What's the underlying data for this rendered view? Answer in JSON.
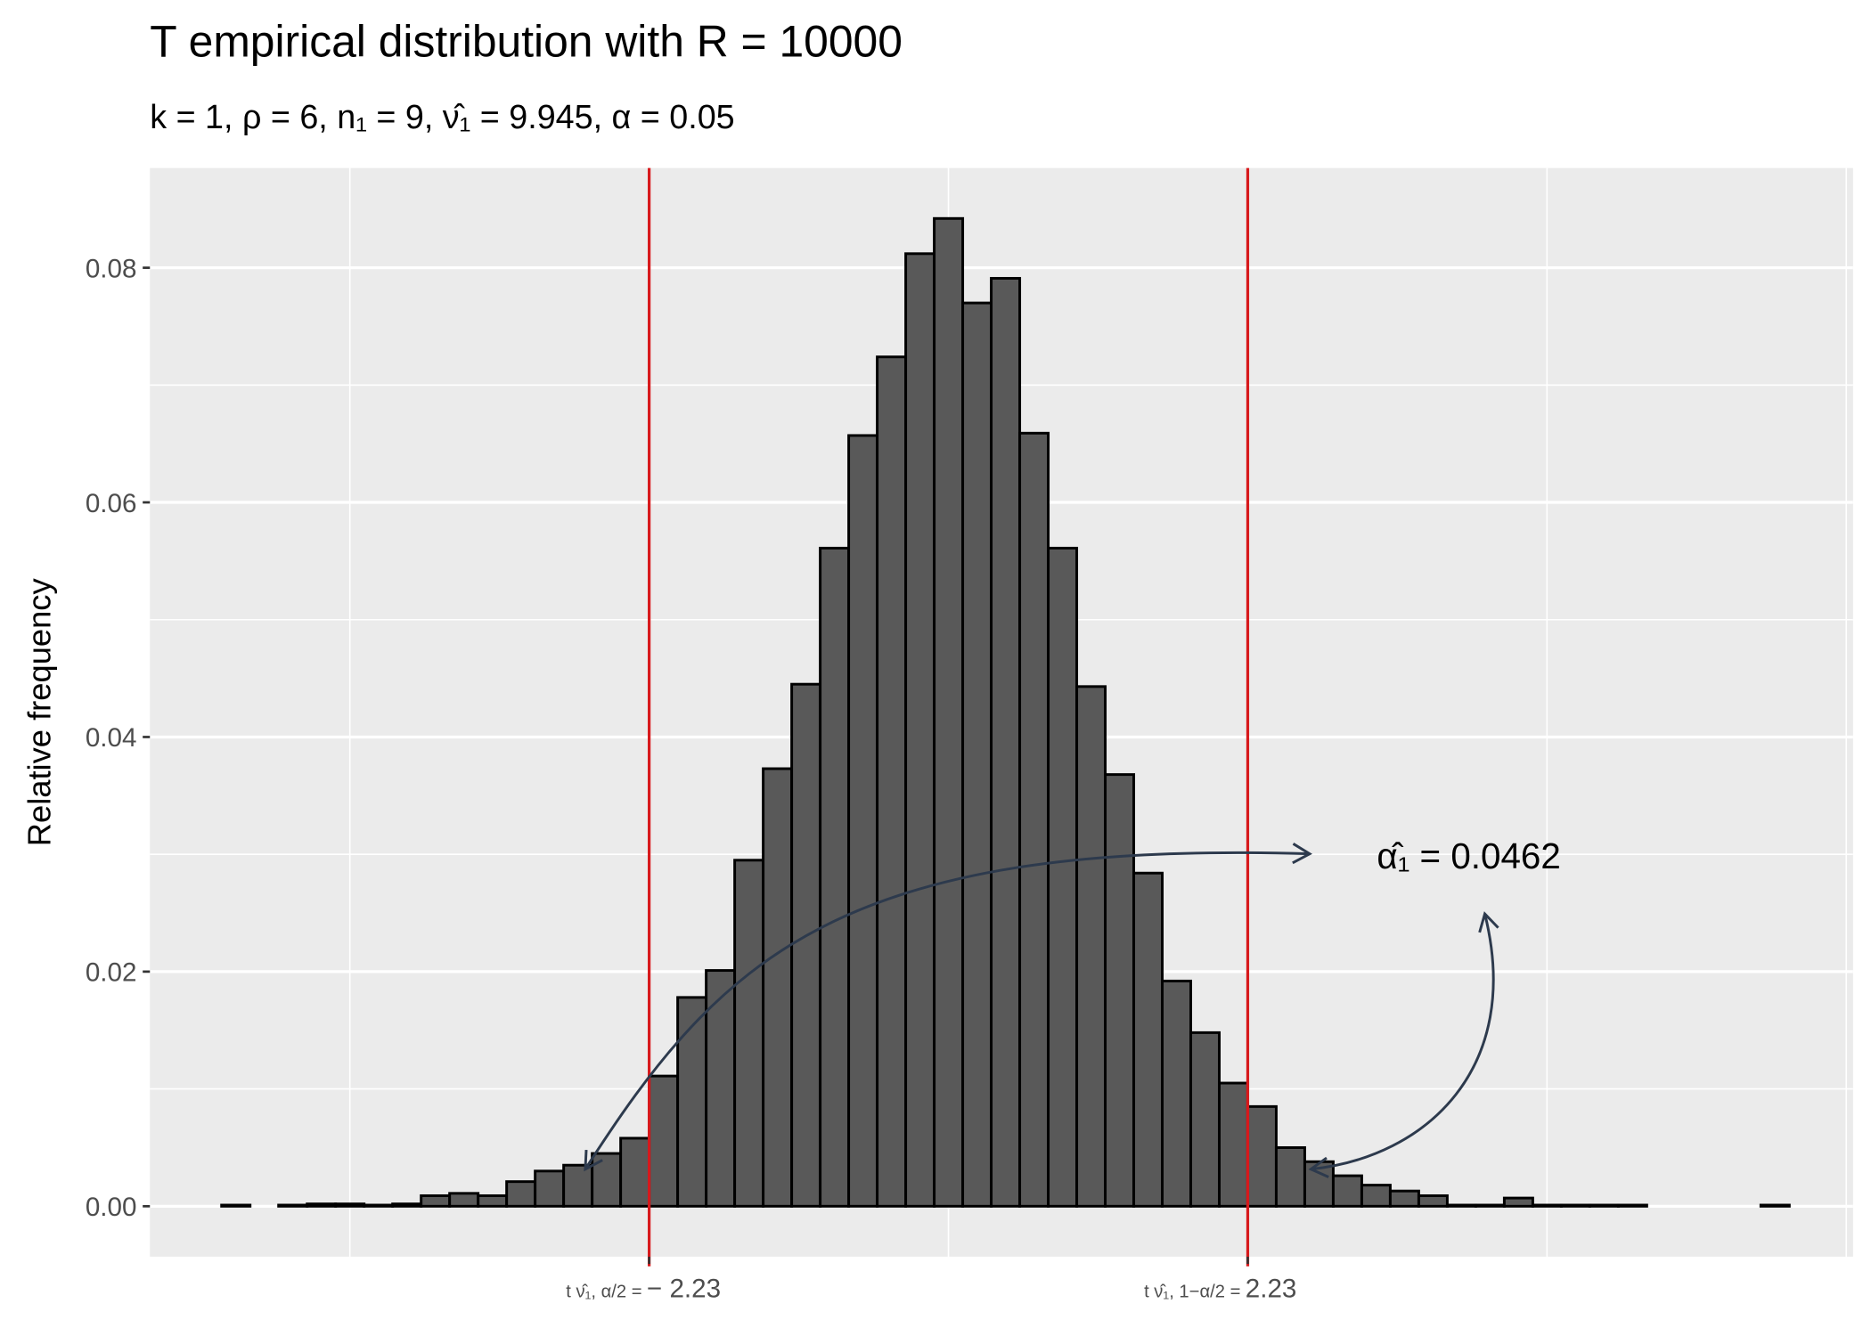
{
  "chart_data": {
    "type": "histogram",
    "title": "T empirical distribution with R = 10000",
    "subtitle": "k = 1, ρ = 6, n₁ = 9, ν̂₁ = 9.945, α = 0.05",
    "y_label": "Relative frequency",
    "annotation": "α̂₁ = 0.0462",
    "bins": [
      -5.416,
      -5.2036,
      -4.9912,
      -4.7788,
      -4.5664,
      -4.354,
      -4.1416,
      -3.9292,
      -3.7168,
      -3.5044,
      -3.292,
      -3.0796,
      -2.8672,
      -2.6548,
      -2.4424,
      -2.23,
      -2.0176,
      -1.8052,
      -1.5928,
      -1.3804,
      -1.168,
      -0.9556,
      -0.7432,
      -0.5308,
      -0.3184,
      -0.106,
      0.1064,
      0.3188,
      0.5312,
      0.7436,
      0.956,
      1.1684,
      1.3808,
      1.5932,
      1.8056,
      2.018,
      2.23,
      2.4424,
      2.6548,
      2.8672,
      3.0796,
      3.292,
      3.5044,
      3.7168,
      3.9292,
      4.1416,
      4.354,
      4.5664,
      4.7788,
      4.9912,
      5.2036,
      5.416,
      5.6284,
      5.8408,
      6.0532,
      6.2656
    ],
    "values": [
      0.0001,
      0,
      0.0001,
      0.0002,
      0.0002,
      0.0001,
      0.0002,
      0.0009,
      0.0011,
      0.0009,
      0.0021,
      0.003,
      0.0035,
      0.0045,
      0.0058,
      0.0111,
      0.0178,
      0.0201,
      0.0295,
      0.0373,
      0.0445,
      0.0561,
      0.0657,
      0.0724,
      0.0812,
      0.0842,
      0.077,
      0.0791,
      0.0659,
      0.0561,
      0.0443,
      0.0368,
      0.0284,
      0.0192,
      0.0148,
      0.0105,
      0.0085,
      0.005,
      0.0038,
      0.0026,
      0.0018,
      0.0013,
      0.0009,
      0.0001,
      0.0001,
      0.0007,
      0.0001,
      0.0001,
      0.0001,
      0.0001,
      0,
      0,
      0,
      0,
      0.0001
    ],
    "color": "#595959",
    "edge_color": "#000000",
    "xlim": [
      -5.95,
      6.74
    ],
    "ylim": [
      -0.0043,
      0.0885
    ],
    "xticks": [
      {
        "value": -2.23,
        "label": "− 2.23",
        "notation": "t ν̂₁, α/2 ="
      },
      {
        "value": 2.23,
        "label": "2.23",
        "notation": "t ν̂₁, 1−α/2 ="
      }
    ],
    "x_minor_grid": [
      -4.46,
      0,
      4.46,
      6.69
    ],
    "yticks": [
      {
        "value": 0,
        "label": "0.00"
      },
      {
        "value": 0.02,
        "label": "0.02"
      },
      {
        "value": 0.04,
        "label": "0.04"
      },
      {
        "value": 0.06,
        "label": "0.06"
      },
      {
        "value": 0.08,
        "label": "0.08"
      }
    ],
    "y_minor_grid": [
      0.01,
      0.03,
      0.05,
      0.07
    ],
    "vlines": [
      -2.23,
      2.23
    ],
    "vline_color": "#d7191c",
    "grid": true
  }
}
